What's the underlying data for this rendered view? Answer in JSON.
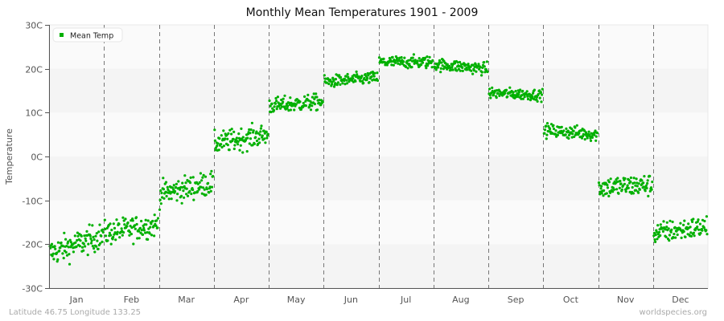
{
  "chart_data": {
    "type": "scatter",
    "title": "Monthly Mean Temperatures 1901 - 2009",
    "xlabel": "",
    "ylabel": "Temperature",
    "categories": [
      "Jan",
      "Feb",
      "Mar",
      "Apr",
      "May",
      "Jun",
      "Jul",
      "Aug",
      "Sep",
      "Oct",
      "Nov",
      "Dec"
    ],
    "yticks": [
      "30C",
      "20C",
      "10C",
      "0C",
      "-10C",
      "-20C",
      "-30C"
    ],
    "ylim": [
      -30,
      30
    ],
    "grid": "alternating horizontal bands, dashed vertical month separators",
    "legend": {
      "position": "top-left",
      "entries": [
        "Mean Temp"
      ]
    },
    "series": [
      {
        "name": "Mean Temp",
        "color": "#00b000",
        "points_per_month": 109,
        "months": [
          {
            "month": "Jan",
            "start": -22,
            "end": -18,
            "spread": 2.2
          },
          {
            "month": "Feb",
            "start": -17.5,
            "end": -15.5,
            "spread": 2.0
          },
          {
            "month": "Mar",
            "start": -8.5,
            "end": -6,
            "spread": 2.0
          },
          {
            "month": "Apr",
            "start": 3,
            "end": 5,
            "spread": 1.8
          },
          {
            "month": "May",
            "start": 11.5,
            "end": 12.5,
            "spread": 1.3
          },
          {
            "month": "Jun",
            "start": 17,
            "end": 18,
            "spread": 1.0
          },
          {
            "month": "Jul",
            "start": 21.5,
            "end": 21.5,
            "spread": 1.0
          },
          {
            "month": "Aug",
            "start": 21,
            "end": 20,
            "spread": 1.0
          },
          {
            "month": "Sep",
            "start": 14.5,
            "end": 14,
            "spread": 0.9
          },
          {
            "month": "Oct",
            "start": 6,
            "end": 5,
            "spread": 1.1
          },
          {
            "month": "Nov",
            "start": -7,
            "end": -6.5,
            "spread": 1.8
          },
          {
            "month": "Dec",
            "start": -17.5,
            "end": -16,
            "spread": 1.8
          }
        ]
      }
    ]
  },
  "footer": {
    "location": "Latitude 46.75 Longitude 133.25",
    "source": "worldspecies.org"
  },
  "colors": {
    "band_light": "#fafafa",
    "band_dark": "#f4f4f4",
    "axis": "#555555",
    "separator": "#777777"
  }
}
